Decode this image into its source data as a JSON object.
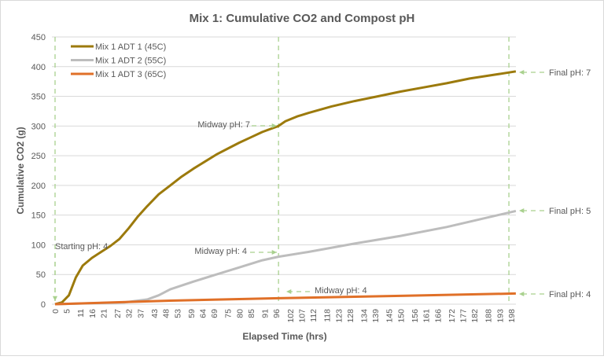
{
  "chart_data": {
    "type": "line",
    "title": "Mix 1: Cumulative CO2 and Compost pH",
    "xlabel": "Elapsed Time (hrs)",
    "ylabel": "Cumulative CO2 (g)",
    "xlim": [
      0,
      200
    ],
    "ylim": [
      0,
      450
    ],
    "yticks": [
      0,
      50,
      100,
      150,
      200,
      250,
      300,
      350,
      400,
      450
    ],
    "xtick_labels": [
      0,
      5,
      11,
      16,
      21,
      27,
      32,
      37,
      43,
      48,
      53,
      59,
      64,
      69,
      75,
      80,
      85,
      91,
      96,
      102,
      107,
      112,
      118,
      123,
      128,
      134,
      139,
      145,
      150,
      156,
      161,
      166,
      172,
      177,
      182,
      188,
      193,
      198
    ],
    "grid": "horizontal",
    "legend_position": "top-left",
    "series": [
      {
        "name": "Mix 1 ADT 1 (45C)",
        "color": "#9C7A0C",
        "x": [
          0,
          3,
          6,
          9,
          12,
          16,
          20,
          24,
          28,
          32,
          36,
          40,
          45,
          50,
          55,
          60,
          65,
          70,
          75,
          80,
          85,
          90,
          97,
          100,
          105,
          110,
          120,
          130,
          140,
          150,
          160,
          170,
          180,
          190,
          200
        ],
        "y": [
          0,
          3,
          15,
          45,
          65,
          78,
          88,
          98,
          110,
          128,
          148,
          165,
          185,
          200,
          215,
          228,
          240,
          252,
          262,
          272,
          281,
          290,
          300,
          308,
          316,
          322,
          333,
          342,
          350,
          358,
          365,
          372,
          380,
          386,
          392
        ]
      },
      {
        "name": "Mix 1 ADT 2 (55C)",
        "color": "#BDBDBD",
        "x": [
          0,
          30,
          40,
          45,
          50,
          60,
          70,
          80,
          90,
          97,
          110,
          130,
          150,
          170,
          190,
          200
        ],
        "y": [
          0,
          3,
          8,
          15,
          25,
          38,
          50,
          62,
          74,
          80,
          88,
          102,
          115,
          130,
          148,
          157
        ]
      },
      {
        "name": "Mix 1 ADT 3 (65C)",
        "color": "#E07028",
        "x": [
          0,
          50,
          97,
          150,
          200
        ],
        "y": [
          0,
          6,
          10,
          14,
          18
        ]
      }
    ],
    "vlines": [
      0,
      97,
      197
    ],
    "annotations": [
      {
        "text": "Starting pH: 4",
        "x": 0,
        "y": 0
      },
      {
        "text": "Midway pH: 7",
        "x": 97,
        "y": 300
      },
      {
        "text": "Midway pH: 4",
        "x": 97,
        "y": 80
      },
      {
        "text": "Midway pH: 4",
        "x": 97,
        "y": 10
      },
      {
        "text": "Final pH: 7",
        "x": 200,
        "y": 392
      },
      {
        "text": "Final pH: 5",
        "x": 200,
        "y": 157
      },
      {
        "text": "Final pH: 4",
        "x": 200,
        "y": 18
      }
    ],
    "annotation_color": "#A9D18E"
  }
}
